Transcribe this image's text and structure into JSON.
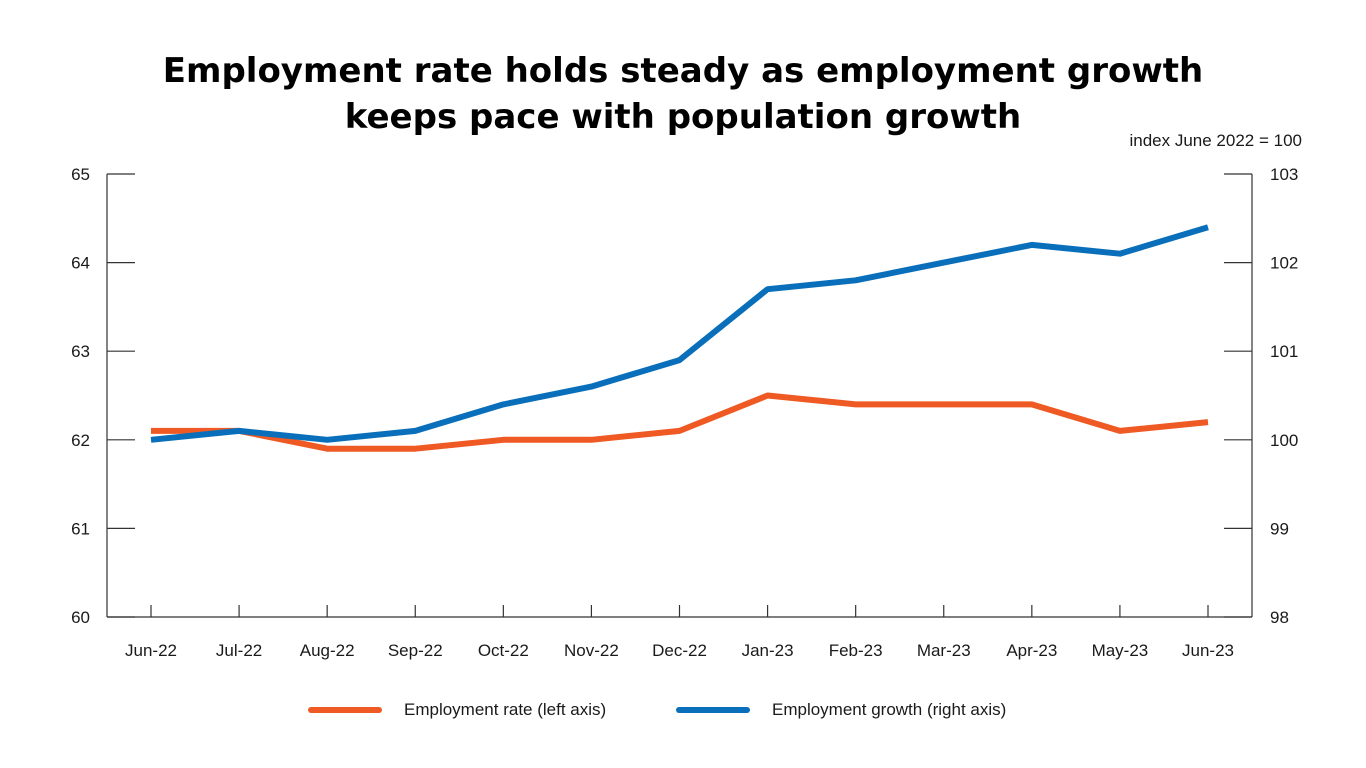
{
  "chart_data": {
    "type": "line",
    "title": "Employment rate holds steady as employment growth keeps pace with population growth",
    "title_lines": [
      "Employment rate holds steady as employment growth",
      "keeps pace with population growth"
    ],
    "right_axis_note": "index June 2022 = 100",
    "categories": [
      "Jun-22",
      "Jul-22",
      "Aug-22",
      "Sep-22",
      "Oct-22",
      "Nov-22",
      "Dec-22",
      "Jan-23",
      "Feb-23",
      "Mar-23",
      "Apr-23",
      "May-23",
      "Jun-23"
    ],
    "left_axis": {
      "ylim": [
        60,
        65
      ],
      "ticks": [
        "60",
        "61",
        "62",
        "63",
        "64",
        "65"
      ]
    },
    "right_axis": {
      "ylim": [
        98,
        103
      ],
      "ticks": [
        "98",
        "99",
        "100",
        "101",
        "102",
        "103"
      ]
    },
    "series": [
      {
        "name": "Employment rate (left axis)",
        "axis": "left",
        "color": "#ef5a24",
        "values": [
          62.1,
          62.1,
          61.9,
          61.9,
          62.0,
          62.0,
          62.1,
          62.5,
          62.4,
          62.4,
          62.4,
          62.1,
          62.2
        ]
      },
      {
        "name": "Employment growth (right axis)",
        "axis": "right",
        "color": "#0a6fba",
        "values": [
          100.0,
          100.1,
          100.0,
          100.1,
          100.4,
          100.6,
          100.9,
          101.7,
          101.8,
          102.0,
          102.2,
          102.1,
          102.4
        ]
      }
    ],
    "grid": false,
    "legend_position": "bottom"
  }
}
